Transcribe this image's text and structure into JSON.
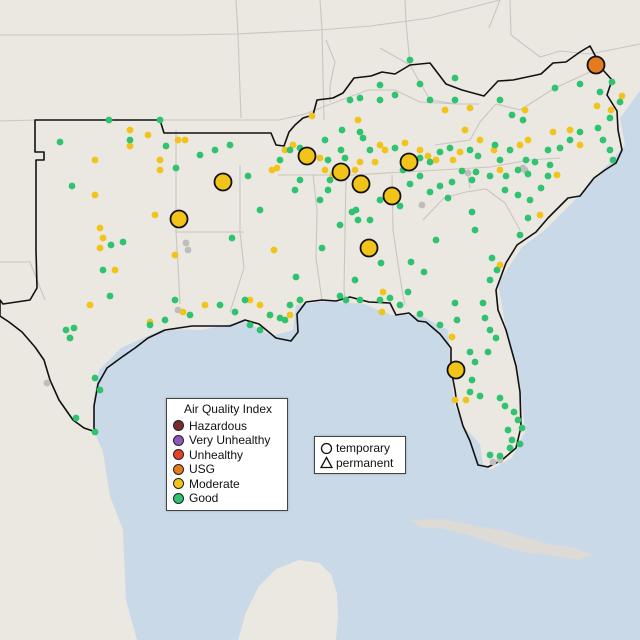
{
  "colors": {
    "ocean": "#c9d9e8",
    "land": "#ebe7e1",
    "border": "#c9c5c0",
    "outline": "#111111",
    "cuba": "#dedad5"
  },
  "legend": {
    "title": "Air Quality Index",
    "items": [
      {
        "label": "Hazardous",
        "color": "#7b2b2b"
      },
      {
        "label": "Very Unhealthy",
        "color": "#8e57b8"
      },
      {
        "label": "Unhealthy",
        "color": "#e5422b"
      },
      {
        "label": "USG",
        "color": "#e67a1f"
      },
      {
        "label": "Moderate",
        "color": "#f2c318"
      },
      {
        "label": "Good",
        "color": "#2fc36f"
      }
    ]
  },
  "shape_legend": {
    "items": [
      {
        "label": "temporary",
        "shape": "circle-icon"
      },
      {
        "label": "permanent",
        "shape": "triangle-icon"
      }
    ]
  },
  "monitors": {
    "no_data_color": "#bdbdbd",
    "large_stations": [
      {
        "category": "Moderate",
        "label": "Moderate"
      },
      {
        "category": "Moderate",
        "label": "Moderate"
      },
      {
        "category": "Moderate",
        "label": "Moderate"
      },
      {
        "category": "Moderate",
        "label": "Moderate"
      },
      {
        "category": "Moderate",
        "label": "Moderate"
      },
      {
        "category": "Moderate",
        "label": "Moderate"
      },
      {
        "category": "Moderate",
        "label": "Moderate"
      },
      {
        "category": "Moderate",
        "label": "Moderate"
      },
      {
        "category": "Moderate",
        "label": "Moderate"
      },
      {
        "category": "USG",
        "label": "USG"
      }
    ]
  }
}
